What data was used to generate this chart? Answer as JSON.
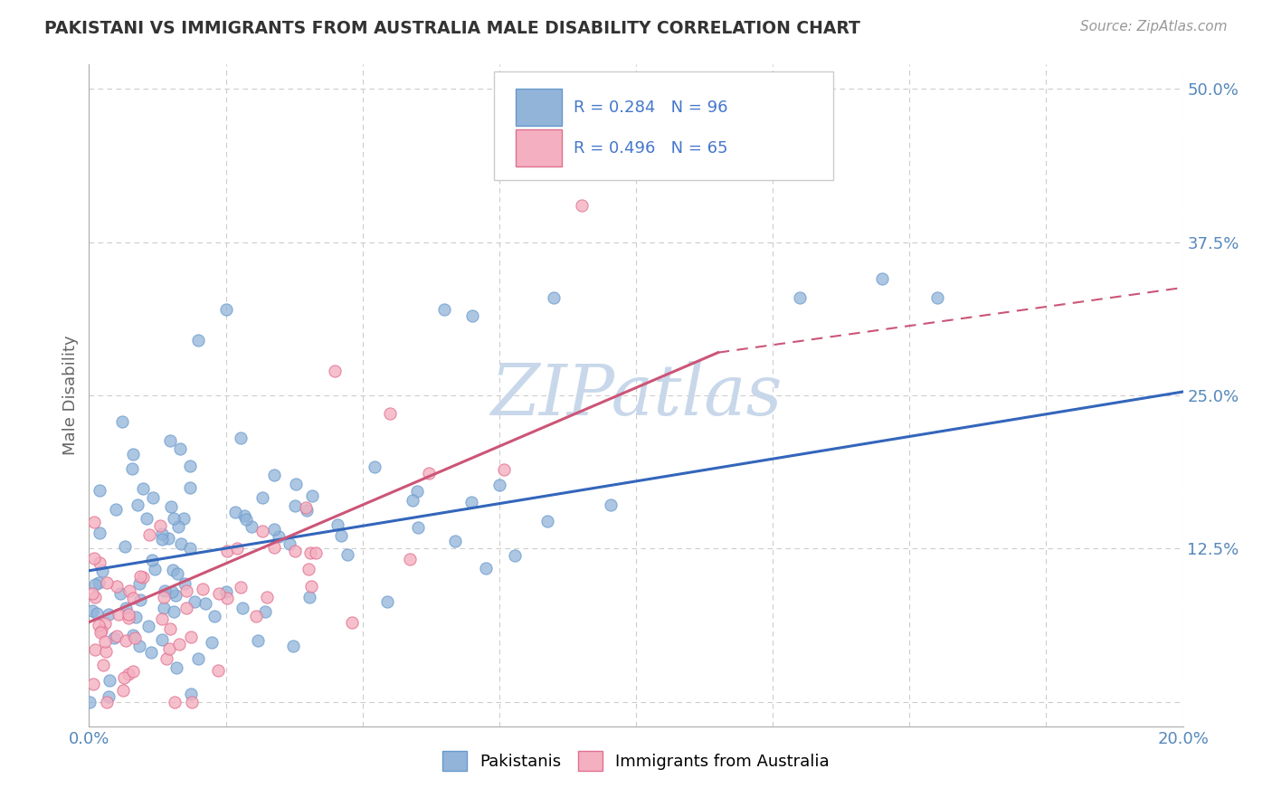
{
  "title": "PAKISTANI VS IMMIGRANTS FROM AUSTRALIA MALE DISABILITY CORRELATION CHART",
  "source": "Source: ZipAtlas.com",
  "ylabel": "Male Disability",
  "xlim": [
    0.0,
    0.2
  ],
  "ylim": [
    -0.02,
    0.52
  ],
  "xticks": [
    0.0,
    0.025,
    0.05,
    0.075,
    0.1,
    0.125,
    0.15,
    0.175,
    0.2
  ],
  "xticklabels": [
    "0.0%",
    "",
    "",
    "",
    "",
    "",
    "",
    "",
    "20.0%"
  ],
  "yticks": [
    0.0,
    0.125,
    0.25,
    0.375,
    0.5
  ],
  "yticklabels": [
    "",
    "12.5%",
    "25.0%",
    "37.5%",
    "50.0%"
  ],
  "series1_color": "#92b4d9",
  "series1_edge": "#6699cc",
  "series2_color": "#f4b0c0",
  "series2_edge": "#e07090",
  "series1_label": "Pakistanis",
  "series2_label": "Immigrants from Australia",
  "series1_R": 0.284,
  "series1_N": 96,
  "series2_R": 0.496,
  "series2_N": 65,
  "blue_line_color": "#3366bb",
  "pink_line_color": "#cc5577",
  "watermark": "ZIPatlas",
  "watermark_color": "#c8d8ea",
  "background_color": "#ffffff",
  "grid_color": "#cccccc",
  "title_color": "#333333",
  "axis_label_color": "#5588bb",
  "legend_text_color_blue": "#4477cc",
  "legend_text_color_pink": "#cc4477"
}
